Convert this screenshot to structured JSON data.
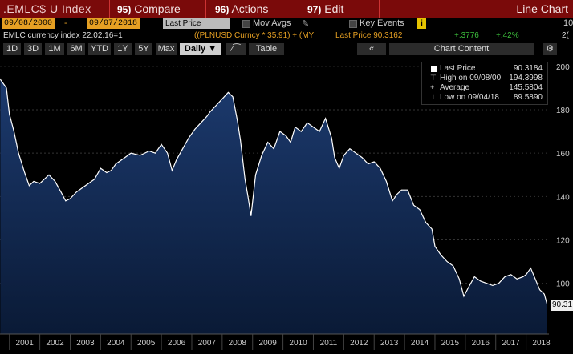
{
  "title_bar": {
    "ticker": ".EMLC$ U Index",
    "compare_num": "95)",
    "compare_label": "Compare",
    "actions_num": "96)",
    "actions_label": "Actions",
    "edit_num": "97)",
    "edit_label": "Edit",
    "view_label": "Line Chart"
  },
  "controls": {
    "start_date": "09/08/2000",
    "dash": "-",
    "end_date": "09/07/2018",
    "field_select": "Last Price",
    "mov_avgs_label": "Mov Avgs",
    "key_events_label": "Key Events",
    "info_icon": "i",
    "right_num": "10"
  },
  "info_line": {
    "description": "EMLC currency index 22.02.16=1",
    "overlay": "((PLNUSD Curncy * 35.91) + (MY",
    "last_price_label": "Last Price 90.3162",
    "change_abs": "+.3776",
    "change_pct": "+.42%",
    "tail": "2("
  },
  "toolbar": {
    "periods": [
      "1D",
      "3D",
      "1M",
      "6M",
      "YTD",
      "1Y",
      "5Y",
      "Max"
    ],
    "frequency": "Daily",
    "table_label": "Table",
    "chart_content_label": "Chart Content"
  },
  "legend": {
    "last_price_label": "Last Price",
    "last_price_value": "90.3184",
    "high_label": "High on 09/08/00",
    "high_value": "194.3998",
    "average_label": "Average",
    "average_value": "145.5804",
    "low_label": "Low on 09/04/18",
    "low_value": "89.5890"
  },
  "last_value_tag": "90.31",
  "colors": {
    "title_bar": "#7a0a0a",
    "date_box": "#e6a023",
    "area_top": "#1c3a6e",
    "area_bottom": "#0a1a36",
    "line": "#ffffff",
    "background": "#000000"
  },
  "chart_data": {
    "type": "area",
    "title": "",
    "xlabel": "",
    "ylabel": "",
    "x": [
      "2000.7",
      "2000.9",
      "2001.0",
      "2001.15",
      "2001.3",
      "2001.5",
      "2001.65",
      "2001.8",
      "2002.0",
      "2002.3",
      "2002.5",
      "2002.7",
      "2002.85",
      "2003.0",
      "2003.2",
      "2003.4",
      "2003.6",
      "2003.8",
      "2004.0",
      "2004.2",
      "2004.35",
      "2004.5",
      "2004.8",
      "2005.0",
      "2005.3",
      "2005.6",
      "2005.8",
      "2006.0",
      "2006.2",
      "2006.35",
      "2006.5",
      "2006.7",
      "2006.9",
      "2007.1",
      "2007.3",
      "2007.5",
      "2007.6",
      "2007.8",
      "2008.0",
      "2008.2",
      "2008.35",
      "2008.5",
      "2008.6",
      "2008.75",
      "2008.85",
      "2008.95",
      "2009.1",
      "2009.3",
      "2009.5",
      "2009.7",
      "2009.9",
      "2010.1",
      "2010.25",
      "2010.4",
      "2010.6",
      "2010.8",
      "2011.0",
      "2011.2",
      "2011.4",
      "2011.6",
      "2011.7",
      "2011.85",
      "2012.0",
      "2012.2",
      "2012.4",
      "2012.6",
      "2012.8",
      "2013.0",
      "2013.2",
      "2013.4",
      "2013.6",
      "2013.75",
      "2013.9",
      "2014.1",
      "2014.3",
      "2014.5",
      "2014.7",
      "2014.9",
      "2015.0",
      "2015.2",
      "2015.4",
      "2015.6",
      "2015.8",
      "2015.95",
      "2016.1",
      "2016.3",
      "2016.5",
      "2016.7",
      "2016.9",
      "2017.1",
      "2017.3",
      "2017.5",
      "2017.7",
      "2017.9",
      "2018.0",
      "2018.15",
      "2018.3",
      "2018.45",
      "2018.6",
      "2018.69"
    ],
    "values": [
      194,
      190,
      178,
      170,
      160,
      151,
      145,
      147,
      146,
      150,
      147,
      142,
      138,
      139,
      142,
      144,
      146,
      148,
      153,
      151,
      152,
      155,
      158,
      160,
      159,
      161,
      160,
      164,
      160,
      152,
      157,
      162,
      167,
      171,
      174,
      177,
      179,
      182,
      185,
      188,
      186,
      175,
      166,
      148,
      140,
      131,
      150,
      159,
      165,
      162,
      170,
      168,
      165,
      172,
      170,
      174,
      172,
      170,
      176,
      167,
      158,
      153,
      159,
      162,
      160,
      158,
      155,
      156,
      153,
      147,
      138,
      141,
      143,
      143,
      136,
      134,
      128,
      125,
      117,
      113,
      110,
      108,
      102,
      94,
      98,
      103,
      101,
      100,
      99,
      100,
      103,
      104,
      102,
      103,
      104,
      107,
      102,
      97,
      95,
      90.3
    ],
    "xlim": [
      2000.69,
      2018.75
    ],
    "ylim": [
      84,
      204
    ],
    "y_ticks": [
      100,
      120,
      140,
      160,
      180,
      200
    ],
    "x_tick_labels": [
      "2001",
      "2002",
      "2003",
      "2004",
      "2005",
      "2006",
      "2007",
      "2008",
      "2009",
      "2010",
      "2011",
      "2012",
      "2013",
      "2014",
      "2015",
      "2016",
      "2017",
      "2018"
    ],
    "grid": true,
    "legend_position": "top-right"
  }
}
